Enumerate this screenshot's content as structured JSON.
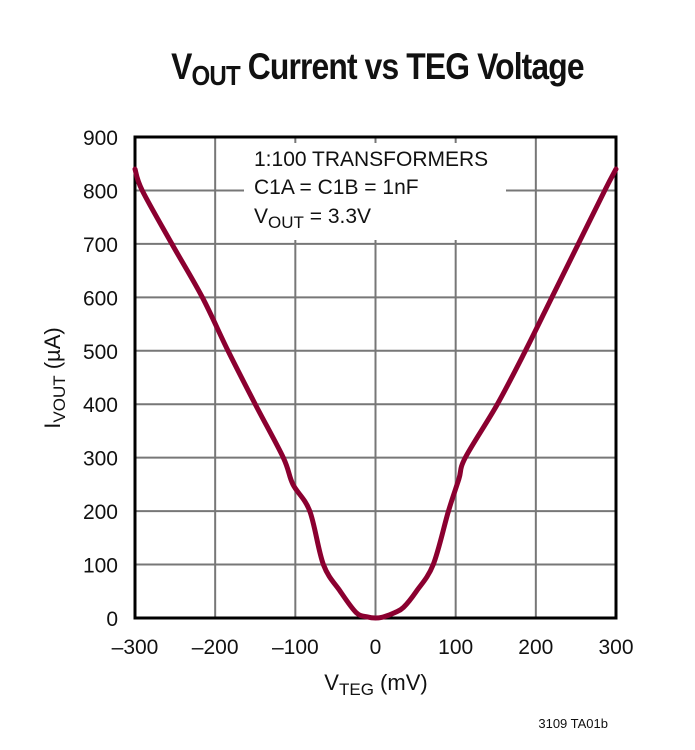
{
  "title": {
    "main": "V",
    "sub": "OUT",
    "rest": " Current vs TEG Voltage"
  },
  "annotation": {
    "line1": "1:100 TRANSFORMERS",
    "line2": "C1A = C1B = 1nF",
    "line3_main": "V",
    "line3_sub": "OUT",
    "line3_rest": " = 3.3V"
  },
  "axes": {
    "x_label_main": "V",
    "x_label_sub": "TEG",
    "x_label_rest": " (mV)",
    "y_label_main": "I",
    "y_label_sub": "VOUT",
    "y_label_rest": " (µA)"
  },
  "figure_id": "3109 TA01b",
  "colors": {
    "curve": "#8B0030",
    "grid": "#777777",
    "axis": "#000000"
  },
  "chart_data": {
    "type": "line",
    "title": "VOUT Current vs TEG Voltage",
    "xlabel": "VTEG (mV)",
    "ylabel": "IVOUT (µA)",
    "xlim": [
      -300,
      300
    ],
    "ylim": [
      0,
      900
    ],
    "x_ticks": [
      "-300",
      "-200",
      "-100",
      "0",
      "100",
      "200",
      "300"
    ],
    "y_ticks": [
      "0",
      "100",
      "200",
      "300",
      "400",
      "500",
      "600",
      "700",
      "800",
      "900"
    ],
    "grid": true,
    "annotations": [
      "1:100 TRANSFORMERS",
      "C1A = C1B = 1nF",
      "VOUT = 3.3V"
    ],
    "series": [
      {
        "name": "IVOUT",
        "x": [
          -300,
          -291,
          -254,
          -216,
          -184,
          -150,
          -115,
          -103,
          -82,
          -65,
          -44,
          -24,
          -10,
          0,
          10,
          24,
          35,
          51,
          72,
          91,
          104,
          112,
          152,
          187,
          220,
          253,
          286,
          300
        ],
        "y": [
          840,
          800,
          700,
          600,
          500,
          400,
          300,
          250,
          200,
          100,
          50,
          10,
          2,
          0,
          2,
          10,
          20,
          50,
          100,
          200,
          260,
          300,
          400,
          500,
          600,
          700,
          800,
          840
        ]
      }
    ]
  }
}
